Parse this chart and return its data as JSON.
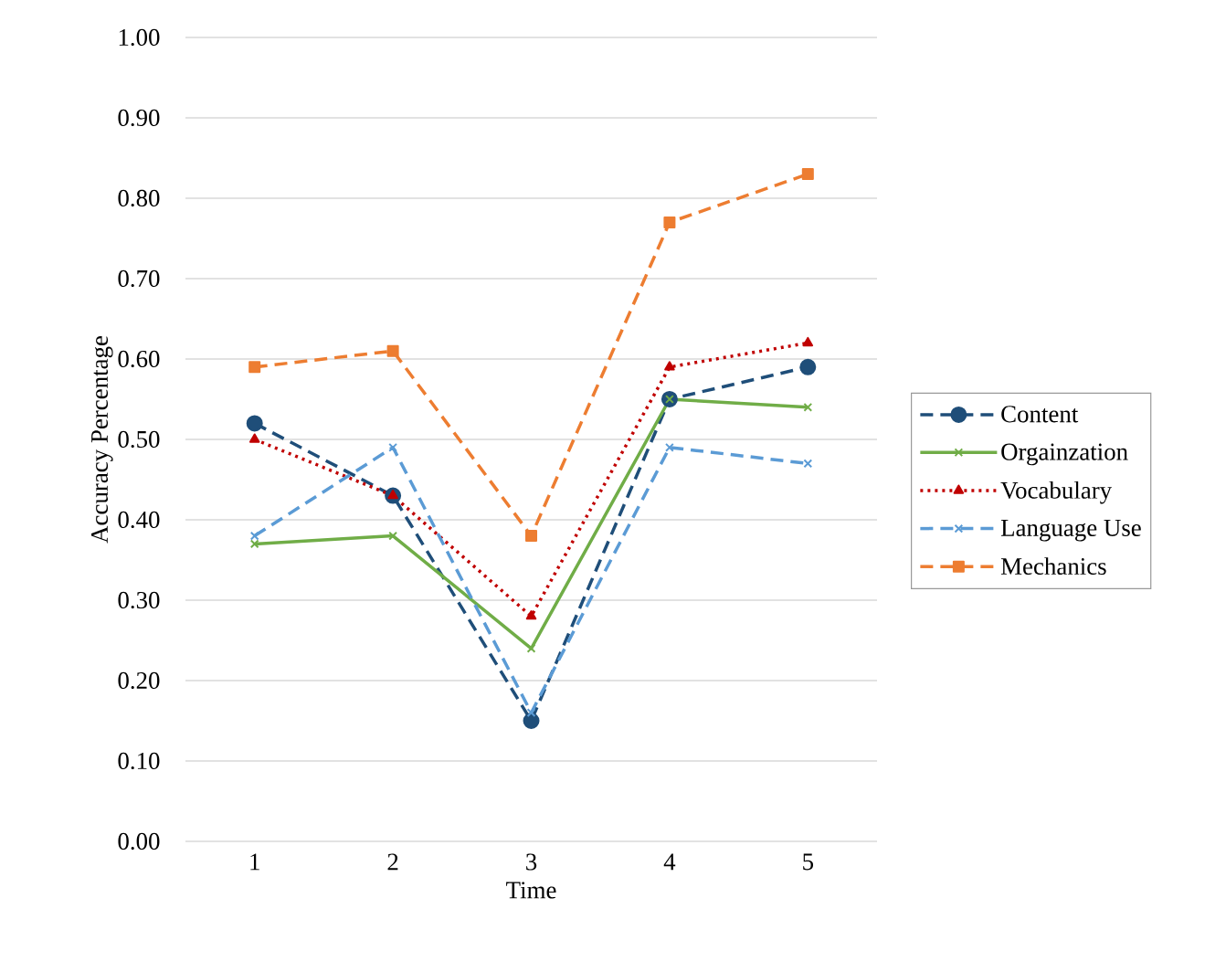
{
  "chart_data": {
    "type": "line",
    "xlabel": "Time",
    "ylabel": "Accuracy Percentage",
    "categories": [
      "1",
      "2",
      "3",
      "4",
      "5"
    ],
    "series": [
      {
        "name": "Content",
        "color": "#1f4e79",
        "values": [
          0.52,
          0.43,
          0.15,
          0.55,
          0.59
        ],
        "marker": "circle",
        "line_style": "dashed"
      },
      {
        "name": "Orgainzation",
        "color": "#70ad47",
        "values": [
          0.37,
          0.38,
          0.24,
          0.55,
          0.54
        ],
        "marker": "cross",
        "line_style": "solid"
      },
      {
        "name": "Vocabulary",
        "color": "#c00000",
        "values": [
          0.5,
          0.43,
          0.28,
          0.59,
          0.62
        ],
        "marker": "triangle",
        "line_style": "dotted"
      },
      {
        "name": "Language Use",
        "color": "#5b9bd5",
        "values": [
          0.38,
          0.49,
          0.16,
          0.49,
          0.47
        ],
        "marker": "cross",
        "line_style": "dashed"
      },
      {
        "name": "Mechanics",
        "color": "#ed7d31",
        "values": [
          0.59,
          0.61,
          0.38,
          0.77,
          0.83
        ],
        "marker": "square",
        "line_style": "dashed"
      }
    ],
    "ylim": [
      0,
      1
    ],
    "yticks": [
      {
        "value": 0,
        "label": "0.00"
      },
      {
        "value": 0.1,
        "label": "0.10"
      },
      {
        "value": 0.2,
        "label": "0.20"
      },
      {
        "value": 0.3,
        "label": "0.30"
      },
      {
        "value": 0.4,
        "label": "0.40"
      },
      {
        "value": 0.5,
        "label": "0.50"
      },
      {
        "value": 0.6,
        "label": "0.60"
      },
      {
        "value": 0.7,
        "label": "0.70"
      },
      {
        "value": 0.8,
        "label": "0.80"
      },
      {
        "value": 0.9,
        "label": "0.90"
      },
      {
        "value": 1,
        "label": "1.00"
      }
    ],
    "grid": "y",
    "legend": "right"
  }
}
